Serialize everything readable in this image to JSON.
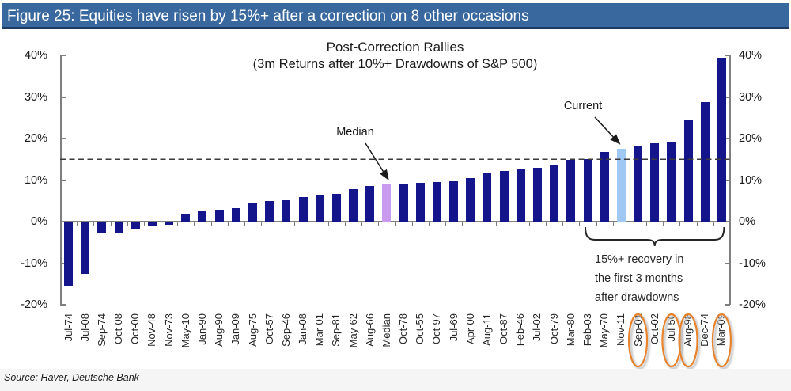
{
  "figure_header": {
    "title": "Figure 25: Equities have risen by 15%+ after a correction on 8 other occasions"
  },
  "chart_data": {
    "type": "bar",
    "title": "Post-Correction Rallies",
    "subtitle": "(3m Returns after 10%+ Drawdowns of S&P 500)",
    "ylim": [
      -20,
      40
    ],
    "yticks_percent": [
      40,
      30,
      20,
      10,
      0,
      -10,
      -20
    ],
    "ytick_label_suffix": "%",
    "grid": "off",
    "reference_line_percent": 15,
    "categories": [
      "Jul-74",
      "Jul-08",
      "Sep-74",
      "Oct-08",
      "Oct-00",
      "Nov-48",
      "Nov-73",
      "May-10",
      "Jan-90",
      "Aug-90",
      "Jan-09",
      "Aug-75",
      "Oct-57",
      "Sep-46",
      "Jan-08",
      "Mar-01",
      "Sep-81",
      "May-62",
      "Aug-66",
      "Median",
      "Oct-78",
      "Oct-55",
      "Oct-97",
      "Jul-69",
      "Apr-00",
      "Aug-11",
      "Oct-87",
      "Feb-46",
      "Jul-02",
      "Oct-79",
      "Mar-80",
      "Feb-03",
      "May-70",
      "Nov-11",
      "Sep-01",
      "Oct-02",
      "Jul-50",
      "Aug-98",
      "Dec-74",
      "Mar-09"
    ],
    "values": [
      -15.3,
      -12.4,
      -2.6,
      -2.4,
      -1.6,
      -0.9,
      -0.5,
      1.9,
      2.4,
      2.8,
      3.3,
      4.4,
      4.9,
      5.1,
      6.0,
      6.2,
      6.6,
      7.8,
      8.6,
      9.0,
      9.2,
      9.3,
      9.5,
      9.8,
      10.5,
      11.9,
      12.1,
      12.7,
      12.9,
      13.5,
      14.9,
      15.0,
      16.8,
      17.6,
      18.3,
      18.9,
      19.3,
      24.6,
      28.8,
      39.4
    ],
    "median_label": "Median",
    "median_category": "Median",
    "current_label": "Current",
    "current_category": "Nov-11",
    "circled_categories": [
      "Sep-01",
      "Jul-50",
      "Aug-98",
      "Mar-09"
    ],
    "bracket_category_range": [
      "Feb-03",
      "Mar-09"
    ],
    "bracket_note_lines": [
      "15%+ recovery  in",
      "the first 3 months",
      "after drawdowns"
    ],
    "colors": {
      "bar": "#14148B",
      "median_bar": "#C99BEE",
      "current_bar": "#9FC9F2",
      "circle": "#E8832C",
      "header_bg": "#39689E",
      "header_underline": "#1E3A63",
      "dashed_line": "#3A3A3A",
      "axis": "#7F7F7F"
    }
  },
  "footer": {
    "source": "Source: Haver, Deutsche Bank"
  }
}
